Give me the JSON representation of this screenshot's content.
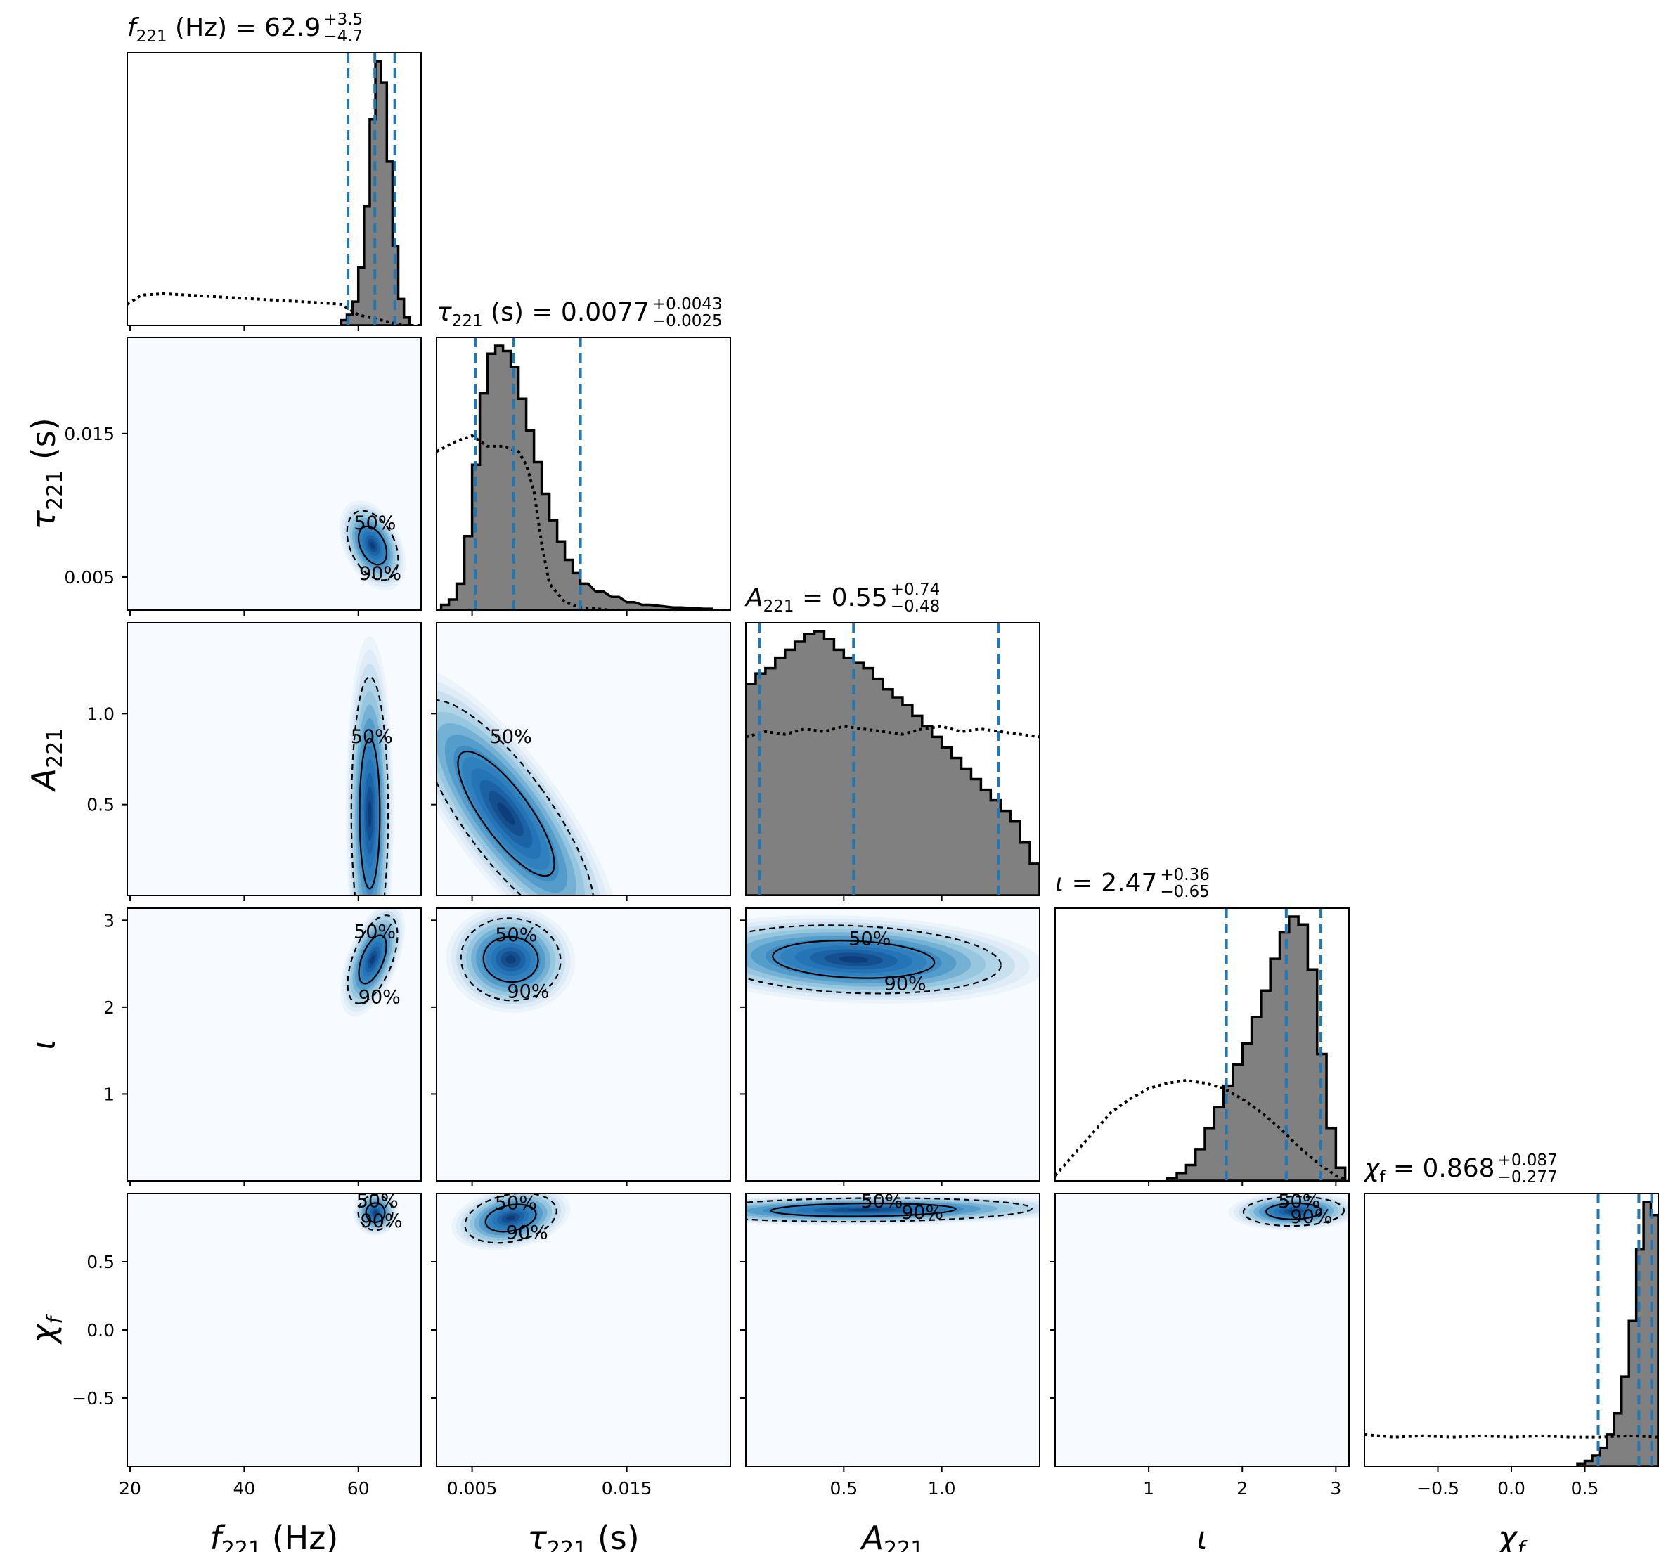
{
  "chart_data": {
    "type": "corner",
    "params": [
      {
        "id": "f221",
        "label": "f221 (Hz)",
        "label_main": "f",
        "label_sub": "221",
        "label_unit": " (Hz)",
        "title_value": "62.9",
        "title_plus": "+3.5",
        "title_minus": "−4.7",
        "median": 62.9,
        "lo": 58.2,
        "hi": 66.4,
        "range": [
          19.5,
          71.0
        ],
        "ticks": [
          20,
          40,
          60
        ],
        "tick_labels": [
          "20",
          "40",
          "60"
        ],
        "posterior_hist": {
          "bins": [
            57,
            58,
            59,
            60,
            61,
            62,
            63,
            64,
            65,
            66,
            67,
            68
          ],
          "values": [
            0.02,
            0.04,
            0.09,
            0.22,
            0.45,
            0.78,
            1.0,
            0.92,
            0.62,
            0.3,
            0.1,
            0.03
          ]
        },
        "prior_curve": {
          "x": [
            19.5,
            22,
            26,
            30,
            34,
            38,
            42,
            46,
            50,
            54,
            57,
            60,
            64,
            68,
            71
          ],
          "y": [
            0.08,
            0.115,
            0.12,
            0.115,
            0.11,
            0.105,
            0.1,
            0.095,
            0.09,
            0.085,
            0.08,
            0.04,
            0.02,
            0.0,
            0.0
          ]
        }
      },
      {
        "id": "tau221",
        "label": "τ221 (s)",
        "label_main": "τ",
        "label_sub": "221",
        "label_unit": " (s)",
        "title_value": "0.0077",
        "title_plus": "+0.0043",
        "title_minus": "−0.0025",
        "median": 0.0077,
        "lo": 0.0052,
        "hi": 0.012,
        "range": [
          0.0027,
          0.0217
        ],
        "ticks": [
          0.005,
          0.015
        ],
        "tick_labels": [
          "0.005",
          "0.015"
        ],
        "posterior_hist": {
          "bins": [
            0.003,
            0.0035,
            0.004,
            0.0045,
            0.005,
            0.0055,
            0.006,
            0.0065,
            0.007,
            0.0075,
            0.008,
            0.0085,
            0.009,
            0.0095,
            0.01,
            0.0105,
            0.011,
            0.0115,
            0.012,
            0.013,
            0.014,
            0.015,
            0.016,
            0.018,
            0.02
          ],
          "values": [
            0.02,
            0.04,
            0.1,
            0.28,
            0.55,
            0.82,
            0.97,
            1.0,
            0.98,
            0.92,
            0.8,
            0.68,
            0.56,
            0.44,
            0.34,
            0.26,
            0.19,
            0.14,
            0.1,
            0.07,
            0.05,
            0.03,
            0.02,
            0.01,
            0.005
          ]
        },
        "prior_curve": {
          "x": [
            0.0027,
            0.004,
            0.005,
            0.006,
            0.007,
            0.008,
            0.0085,
            0.009,
            0.0095,
            0.01,
            0.011,
            0.012,
            0.014,
            0.017,
            0.0217
          ],
          "y": [
            0.6,
            0.64,
            0.66,
            0.62,
            0.62,
            0.6,
            0.55,
            0.45,
            0.25,
            0.1,
            0.03,
            0.01,
            0.0,
            0.0,
            0.0
          ]
        }
      },
      {
        "id": "A221",
        "label": "A221",
        "label_main": "A",
        "label_sub": "221",
        "label_unit": "",
        "title_value": "0.55",
        "title_plus": "+0.74",
        "title_minus": "−0.48",
        "median": 0.55,
        "lo": 0.07,
        "hi": 1.29,
        "range": [
          0.0,
          1.5
        ],
        "ticks": [
          0.5,
          1.0
        ],
        "tick_labels": [
          "0.5",
          "1.0"
        ],
        "posterior_hist": {
          "bins": [
            0.0,
            0.05,
            0.1,
            0.15,
            0.2,
            0.25,
            0.3,
            0.35,
            0.4,
            0.45,
            0.5,
            0.55,
            0.6,
            0.65,
            0.7,
            0.75,
            0.8,
            0.85,
            0.9,
            0.95,
            1.0,
            1.05,
            1.1,
            1.15,
            1.2,
            1.25,
            1.3,
            1.35,
            1.4,
            1.45
          ],
          "values": [
            0.8,
            0.84,
            0.86,
            0.9,
            0.93,
            0.96,
            0.99,
            1.0,
            0.97,
            0.93,
            0.9,
            0.88,
            0.86,
            0.82,
            0.78,
            0.75,
            0.72,
            0.68,
            0.64,
            0.6,
            0.56,
            0.52,
            0.48,
            0.44,
            0.4,
            0.36,
            0.32,
            0.28,
            0.2,
            0.12
          ]
        },
        "prior_curve": {
          "x": [
            0.0,
            0.1,
            0.2,
            0.3,
            0.4,
            0.5,
            0.6,
            0.7,
            0.8,
            0.9,
            1.0,
            1.1,
            1.2,
            1.3,
            1.4,
            1.5
          ],
          "y": [
            0.6,
            0.62,
            0.61,
            0.63,
            0.62,
            0.64,
            0.63,
            0.62,
            0.61,
            0.63,
            0.64,
            0.62,
            0.63,
            0.62,
            0.61,
            0.6
          ]
        }
      },
      {
        "id": "iota",
        "label": "ι",
        "label_main": "ι",
        "label_sub": "",
        "label_unit": "",
        "title_value": "2.47",
        "title_plus": "+0.36",
        "title_minus": "−0.65",
        "median": 2.47,
        "lo": 1.83,
        "hi": 2.84,
        "range": [
          0.0,
          3.14
        ],
        "ticks": [
          1,
          2,
          3
        ],
        "tick_labels": [
          "1",
          "2",
          "3"
        ],
        "posterior_hist": {
          "bins": [
            1.2,
            1.3,
            1.4,
            1.5,
            1.6,
            1.7,
            1.8,
            1.9,
            2.0,
            2.1,
            2.2,
            2.3,
            2.4,
            2.5,
            2.6,
            2.7,
            2.8,
            2.9,
            3.0
          ],
          "values": [
            0.01,
            0.03,
            0.06,
            0.12,
            0.2,
            0.28,
            0.36,
            0.44,
            0.52,
            0.62,
            0.72,
            0.84,
            0.94,
            1.0,
            0.97,
            0.8,
            0.48,
            0.2,
            0.05
          ]
        },
        "prior_curve": {
          "x": [
            0.0,
            0.2,
            0.4,
            0.6,
            0.8,
            1.0,
            1.2,
            1.4,
            1.6,
            1.8,
            2.0,
            2.2,
            2.4,
            2.6,
            2.8,
            3.0,
            3.14
          ],
          "y": [
            0.02,
            0.1,
            0.18,
            0.26,
            0.31,
            0.35,
            0.37,
            0.38,
            0.37,
            0.35,
            0.31,
            0.26,
            0.2,
            0.13,
            0.07,
            0.02,
            0.0
          ]
        }
      },
      {
        "id": "chif",
        "label": "χf",
        "label_main": "χ",
        "label_sub": "f",
        "label_unit": "",
        "title_value": "0.868",
        "title_plus": "+0.087",
        "title_minus": "−0.277",
        "median": 0.868,
        "lo": 0.591,
        "hi": 0.955,
        "range": [
          -1.0,
          1.0
        ],
        "ticks": [
          -0.5,
          0.0,
          0.5
        ],
        "tick_labels": [
          "−0.5",
          "0.0",
          "0.5"
        ],
        "posterior_hist": {
          "bins": [
            0.45,
            0.5,
            0.55,
            0.6,
            0.65,
            0.7,
            0.75,
            0.8,
            0.85,
            0.9,
            0.95
          ],
          "values": [
            0.01,
            0.02,
            0.04,
            0.07,
            0.12,
            0.2,
            0.34,
            0.55,
            0.82,
            1.0,
            0.95
          ]
        },
        "prior_curve": {
          "x": [
            -1.0,
            -0.8,
            -0.6,
            -0.4,
            -0.2,
            0.0,
            0.2,
            0.4,
            0.6,
            0.8,
            1.0
          ],
          "y": [
            0.12,
            0.11,
            0.115,
            0.11,
            0.115,
            0.11,
            0.115,
            0.11,
            0.11,
            0.115,
            0.11
          ]
        }
      }
    ],
    "kde_2d": [
      {
        "row": "tau221",
        "col": "f221",
        "mean": [
          62.5,
          0.0072
        ],
        "sd": [
          1.8,
          0.0012
        ],
        "rho": 0.55
      },
      {
        "row": "A221",
        "col": "f221",
        "mean": [
          62.0,
          0.45
        ],
        "sd": [
          1.5,
          0.35
        ],
        "rho": 0.0
      },
      {
        "row": "A221",
        "col": "tau221",
        "mean": [
          0.0072,
          0.45
        ],
        "sd": [
          0.0013,
          0.35
        ],
        "rho": 0.55
      },
      {
        "row": "iota",
        "col": "f221",
        "mean": [
          62.5,
          2.55
        ],
        "sd": [
          1.6,
          0.25
        ],
        "rho": -0.3
      },
      {
        "row": "iota",
        "col": "tau221",
        "mean": [
          0.0075,
          2.55
        ],
        "sd": [
          0.0015,
          0.22
        ],
        "rho": -0.2
      },
      {
        "row": "iota",
        "col": "A221",
        "mean": [
          0.55,
          2.55
        ],
        "sd": [
          0.35,
          0.18
        ],
        "rho": -0.3
      },
      {
        "row": "chif",
        "col": "f221",
        "mean": [
          63.0,
          0.86
        ],
        "sd": [
          1.4,
          0.06
        ],
        "rho": 0.0
      },
      {
        "row": "chif",
        "col": "tau221",
        "mean": [
          0.0075,
          0.82
        ],
        "sd": [
          0.0014,
          0.08
        ],
        "rho": 0.7
      },
      {
        "row": "chif",
        "col": "A221",
        "mean": [
          0.6,
          0.88
        ],
        "sd": [
          0.4,
          0.04
        ],
        "rho": 0.2
      },
      {
        "row": "chif",
        "col": "iota",
        "mean": [
          2.55,
          0.87
        ],
        "sd": [
          0.25,
          0.05
        ],
        "rho": 0.1
      }
    ],
    "contour_labels": [
      "50%",
      "90%"
    ],
    "colors": {
      "hist_fill": "#808080",
      "hist_edge": "#000000",
      "quantile_line": "#1f77b4",
      "kde_low": "#f7fbff",
      "kde_high": "#08306b"
    }
  }
}
